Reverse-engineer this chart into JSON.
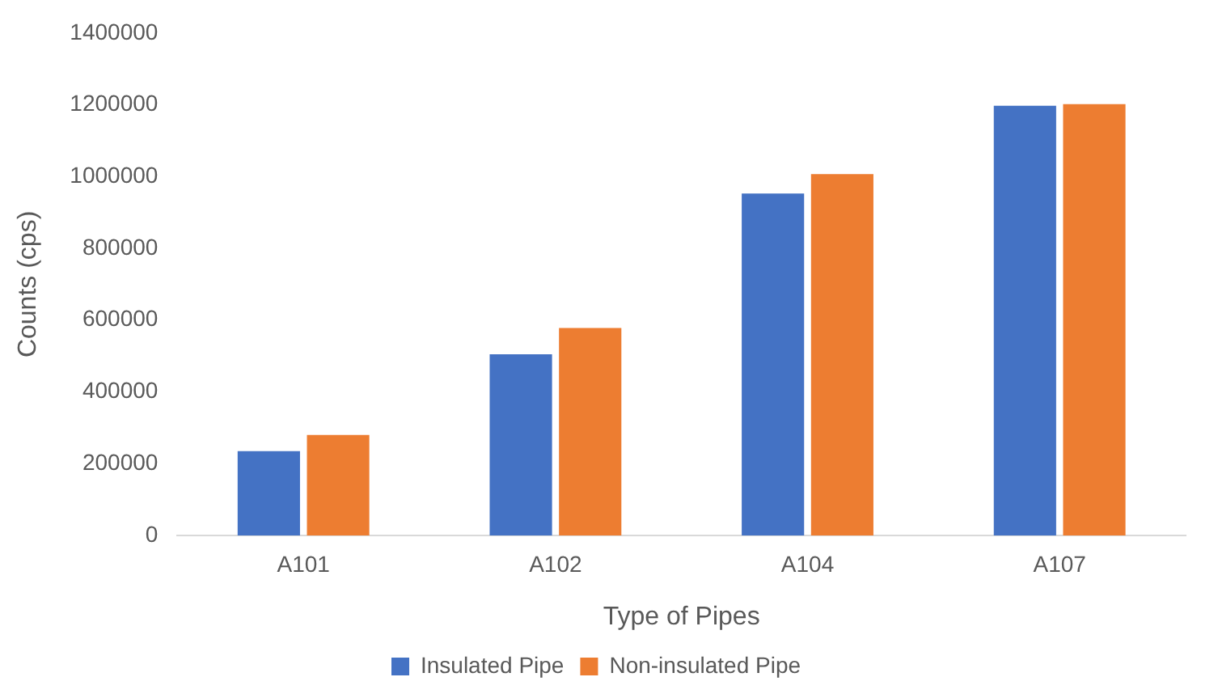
{
  "chart_data": {
    "type": "bar",
    "xlabel": "Type of Pipes",
    "ylabel": "Counts (cps)",
    "categories": [
      "A101",
      "A102",
      "A104",
      "A107"
    ],
    "series": [
      {
        "name": "Insulated Pipe",
        "color": "#4472c4",
        "values": [
          235000,
          505000,
          953000,
          1197000
        ]
      },
      {
        "name": "Non-insulated Pipe",
        "color": "#ed7d31",
        "values": [
          280000,
          578000,
          1007000,
          1202000
        ]
      }
    ],
    "ylim": [
      0,
      1400000
    ],
    "yticks": [
      0,
      200000,
      400000,
      600000,
      800000,
      1000000,
      1200000,
      1400000
    ],
    "grid": false,
    "legend": "bottom"
  }
}
